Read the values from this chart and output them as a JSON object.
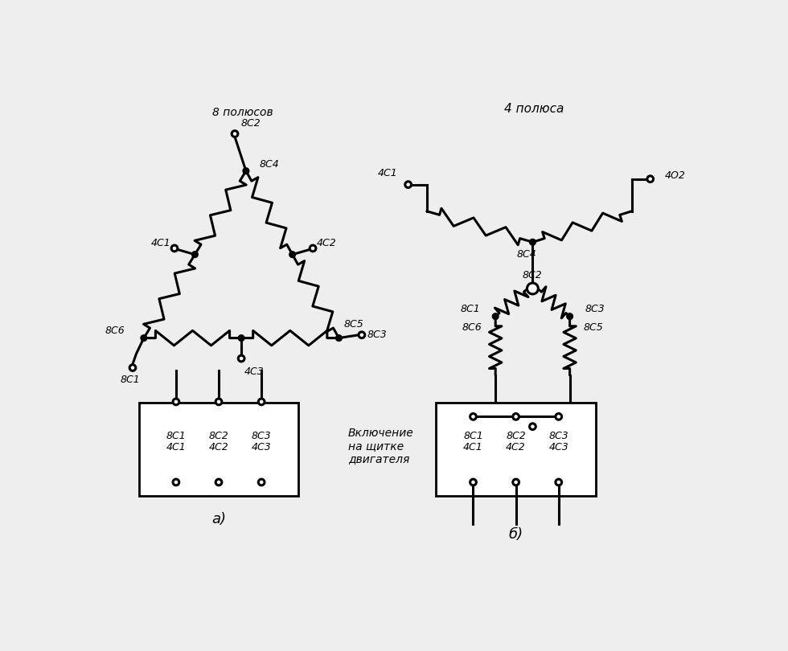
{
  "bg_color": "#eeeeee",
  "line_color": "#000000",
  "lw": 2.2,
  "title_8pol": "8 полюсов",
  "title_4pol": "4 полюса",
  "label_a": "а)",
  "label_b": "б)",
  "caption": "Включение\nна щитке\nдвигателя"
}
